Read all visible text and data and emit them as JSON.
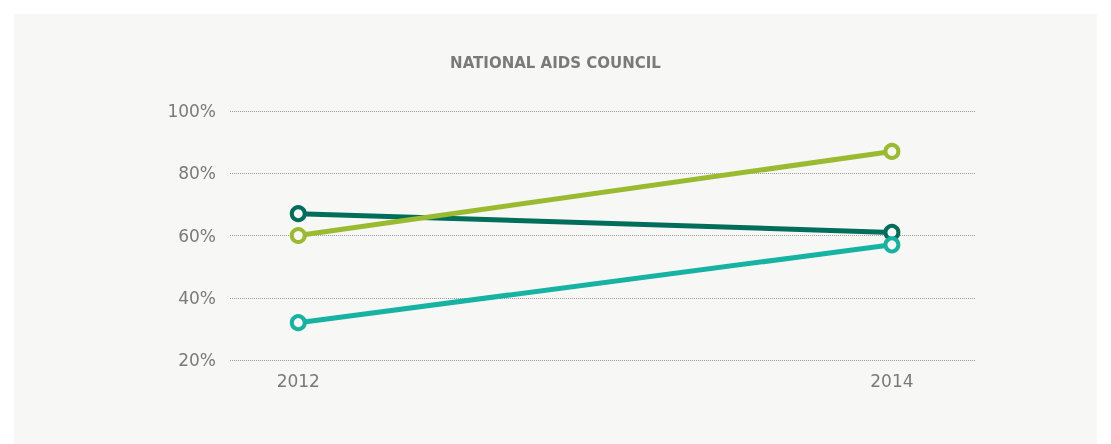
{
  "chart_data": {
    "type": "line",
    "title": "NATIONAL AIDS COUNCIL",
    "x": [
      2012,
      2014
    ],
    "xlim": [
      2011.77,
      2014.28
    ],
    "xticks": [
      2012,
      2014
    ],
    "ylim": [
      20,
      100
    ],
    "yticks": [
      {
        "value": 20,
        "label": "20%"
      },
      {
        "value": 40,
        "label": "40%"
      },
      {
        "value": 60,
        "label": "60%"
      },
      {
        "value": 80,
        "label": "80%"
      },
      {
        "value": 100,
        "label": "100%"
      }
    ],
    "series": [
      {
        "color": "#006e5a",
        "values": [
          67,
          61
        ]
      },
      {
        "color": "#9aba2f",
        "values": [
          60,
          87
        ]
      },
      {
        "color": "#16b3a2",
        "values": [
          32,
          57
        ]
      }
    ],
    "grid": "y",
    "marker": "circle",
    "line_style": "solid"
  }
}
